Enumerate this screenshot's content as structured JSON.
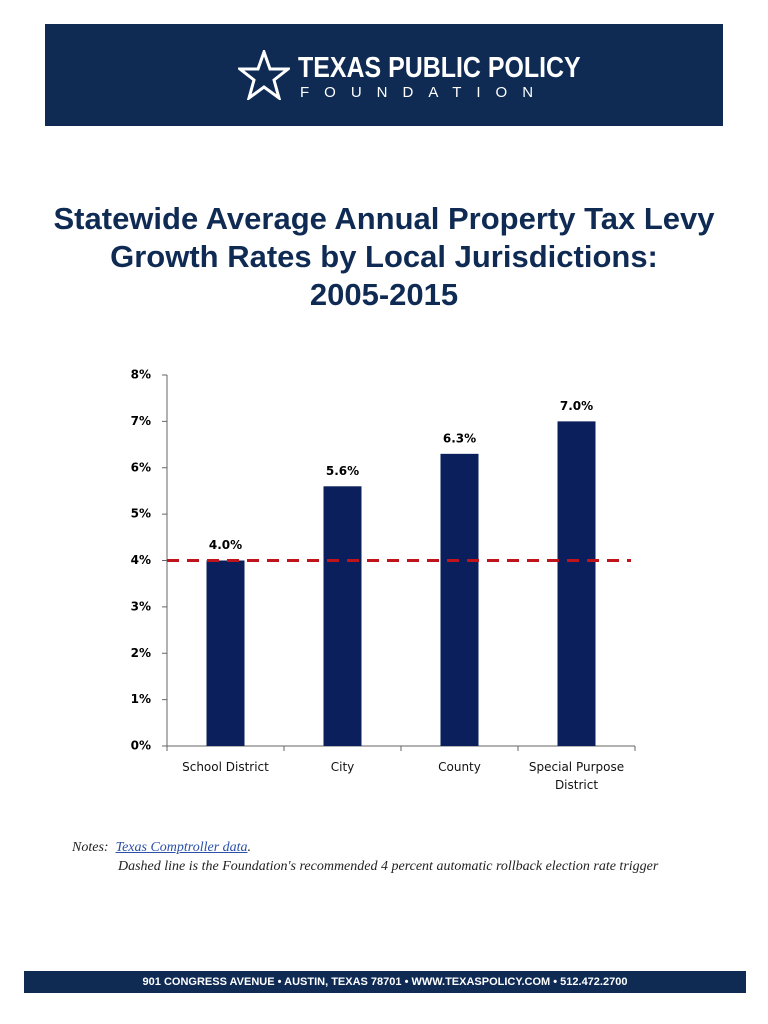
{
  "header": {
    "org_line1": "TEXAS PUBLIC POLICY",
    "org_line2": "FOUNDATION"
  },
  "title_lines": [
    "Statewide Average Annual Property Tax Levy",
    "Growth Rates by Local Jurisdictions:",
    "2005-2015"
  ],
  "chart_data": {
    "type": "bar",
    "categories": [
      "School District",
      "City",
      "County",
      "Special Purpose District"
    ],
    "values": [
      4.0,
      5.6,
      6.3,
      7.0
    ],
    "value_labels": [
      "4.0%",
      "5.6%",
      "6.3%",
      "7.0%"
    ],
    "color": "#0a1f5c",
    "ylim": [
      0,
      8
    ],
    "yticks": [
      {
        "value": 0,
        "label": "0%"
      },
      {
        "value": 1,
        "label": "1%"
      },
      {
        "value": 2,
        "label": "2%"
      },
      {
        "value": 3,
        "label": "3%"
      },
      {
        "value": 4,
        "label": "4%"
      },
      {
        "value": 5,
        "label": "5%"
      },
      {
        "value": 6,
        "label": "6%"
      },
      {
        "value": 7,
        "label": "7%"
      },
      {
        "value": 8,
        "label": "8%"
      }
    ],
    "reference_line": {
      "value": 4,
      "color": "#c0141c",
      "style": "dashed"
    }
  },
  "notes": {
    "label": "Notes:",
    "source": "Texas Comptroller data",
    "source_suffix": ".",
    "line2": "Dashed line is the Foundation's recommended 4 percent automatic rollback election rate trigger"
  },
  "footer": "901 CONGRESS AVENUE  •  AUSTIN, TEXAS 78701  •  WWW.TEXASPOLICY.COM  •  512.472.2700"
}
